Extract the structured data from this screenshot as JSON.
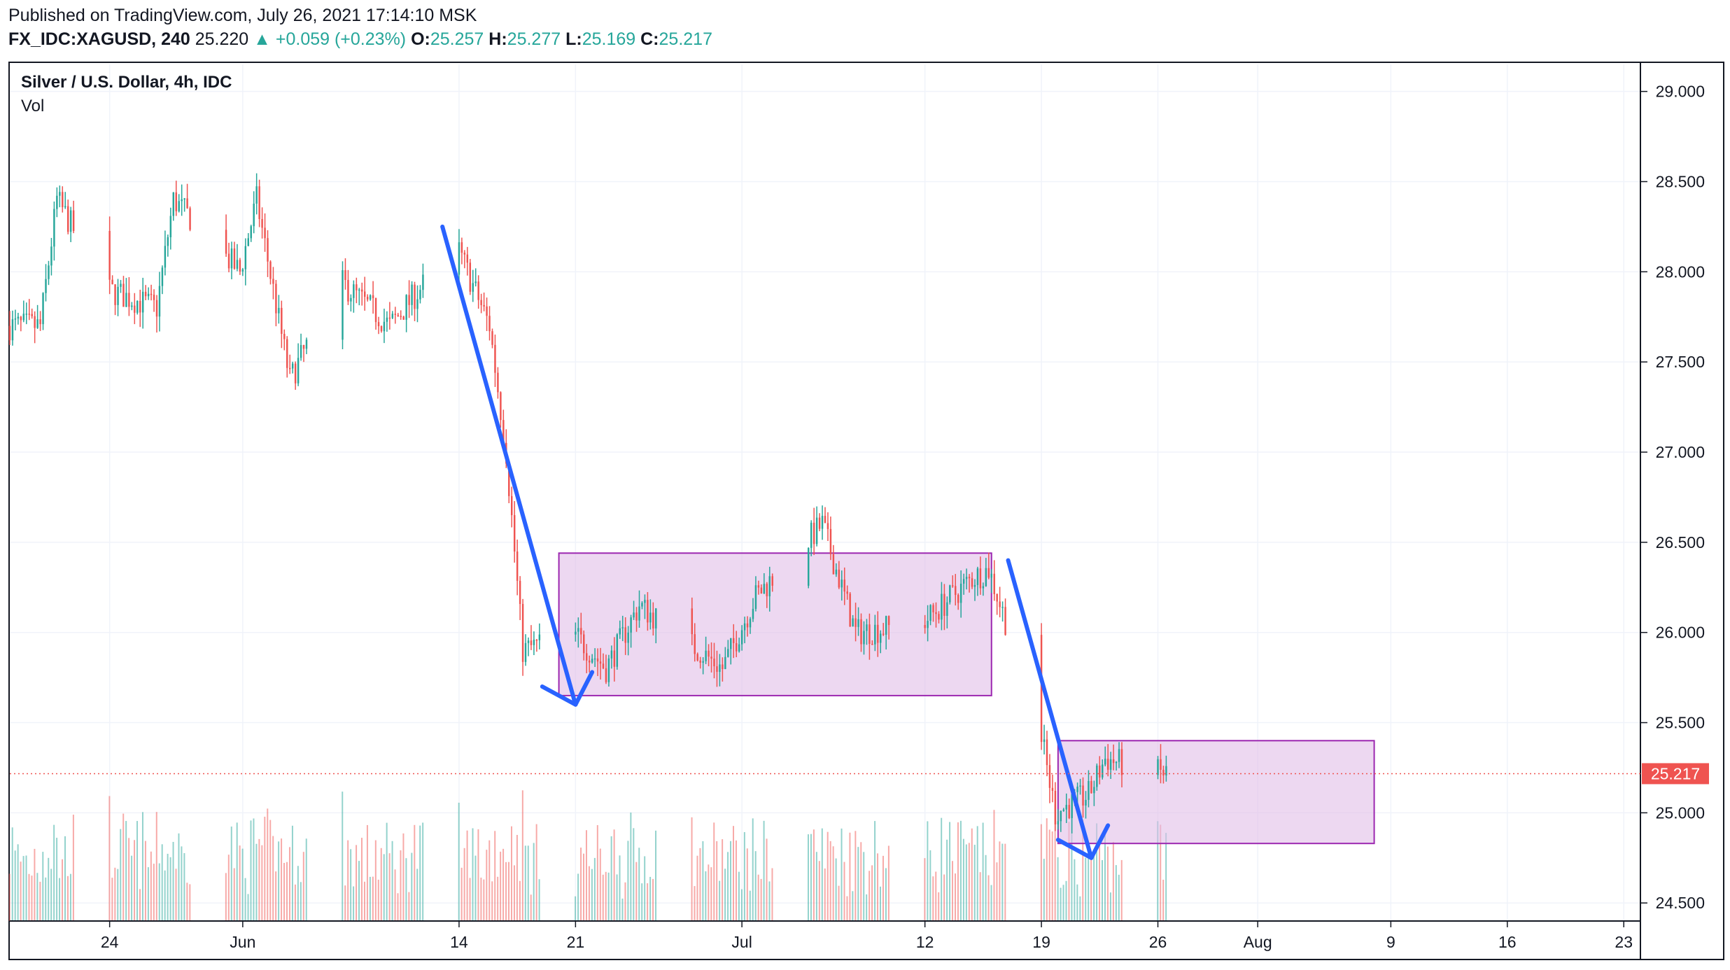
{
  "header": {
    "published": "Published on TradingView.com, July 26, 2021 17:14:10 MSK",
    "symbol": "FX_IDC:XAGUSD, 240",
    "last": "25.220",
    "change": "+0.059 (+0.23%)",
    "o_label": "O:",
    "o": "25.257",
    "h_label": "H:",
    "h": "25.277",
    "l_label": "L:",
    "l": "25.169",
    "c_label": "C:",
    "c": "25.217"
  },
  "legend": {
    "title": "Silver / U.S. Dollar, 4h, IDC",
    "vol": "Vol"
  },
  "colors": {
    "up": "#26a69a",
    "down": "#ef5350",
    "box_fill": "#e1bee7",
    "box_stroke": "#9c27b0",
    "trend": "#2962ff",
    "price_line": "#ef5350"
  },
  "chart_data": {
    "type": "candlestick",
    "ylim": [
      24.4,
      29.15
    ],
    "y_ticks": [
      "29.000",
      "28.500",
      "28.000",
      "27.500",
      "27.000",
      "26.500",
      "26.000",
      "25.500",
      "25.000",
      "24.500"
    ],
    "x_ticks": [
      "24",
      "Jun",
      "14",
      "21",
      "Jul",
      "12",
      "19",
      "26",
      "Aug",
      "9",
      "16",
      "23"
    ],
    "current_price": "25.217",
    "anchors": [
      {
        "date": "2021-05-20",
        "price": 27.7
      },
      {
        "date": "2021-05-21",
        "price": 28.4
      },
      {
        "date": "2021-05-24",
        "price": 27.9
      },
      {
        "date": "2021-05-27",
        "price": 27.8
      },
      {
        "date": "2021-05-28",
        "price": 28.4
      },
      {
        "date": "2021-06-01",
        "price": 28.0
      },
      {
        "date": "2021-06-02",
        "price": 28.4
      },
      {
        "date": "2021-06-04",
        "price": 27.4
      },
      {
        "date": "2021-06-07",
        "price": 27.95
      },
      {
        "date": "2021-06-10",
        "price": 27.7
      },
      {
        "date": "2021-06-14",
        "price": 28.15
      },
      {
        "date": "2021-06-16",
        "price": 27.7
      },
      {
        "date": "2021-06-17",
        "price": 27.0
      },
      {
        "date": "2021-06-18",
        "price": 25.9
      },
      {
        "date": "2021-06-21",
        "price": 26.0
      },
      {
        "date": "2021-06-23",
        "price": 25.8
      },
      {
        "date": "2021-06-25",
        "price": 26.15
      },
      {
        "date": "2021-06-30",
        "price": 25.8
      },
      {
        "date": "2021-07-02",
        "price": 26.2
      },
      {
        "date": "2021-07-06",
        "price": 26.6
      },
      {
        "date": "2021-07-08",
        "price": 26.0
      },
      {
        "date": "2021-07-12",
        "price": 26.05
      },
      {
        "date": "2021-07-15",
        "price": 26.3
      },
      {
        "date": "2021-07-16",
        "price": 26.35
      },
      {
        "date": "2021-07-19",
        "price": 25.5
      },
      {
        "date": "2021-07-20",
        "price": 25.0
      },
      {
        "date": "2021-07-22",
        "price": 25.1
      },
      {
        "date": "2021-07-23",
        "price": 25.3
      },
      {
        "date": "2021-07-26",
        "price": 25.22
      }
    ],
    "annotations": [
      {
        "type": "rectangle",
        "x_from": "2021-06-20",
        "x_to": "2021-07-16",
        "y_from": 25.65,
        "y_to": 26.44
      },
      {
        "type": "rectangle",
        "x_from": "2021-07-20",
        "x_to": "2021-08-08",
        "y_from": 24.83,
        "y_to": 25.4
      },
      {
        "type": "trendline",
        "points": [
          [
            "2021-06-13",
            28.25
          ],
          [
            "2021-06-21",
            25.6
          ]
        ]
      },
      {
        "type": "trendline",
        "points": [
          [
            "2021-06-19",
            25.7
          ],
          [
            "2021-06-21",
            25.6
          ],
          [
            "2021-06-22",
            25.78
          ]
        ]
      },
      {
        "type": "trendline",
        "points": [
          [
            "2021-07-17",
            26.4
          ],
          [
            "2021-07-22",
            24.75
          ]
        ]
      },
      {
        "type": "trendline",
        "points": [
          [
            "2021-07-20",
            24.85
          ],
          [
            "2021-07-22",
            24.75
          ],
          [
            "2021-07-23",
            24.93
          ]
        ]
      }
    ]
  }
}
